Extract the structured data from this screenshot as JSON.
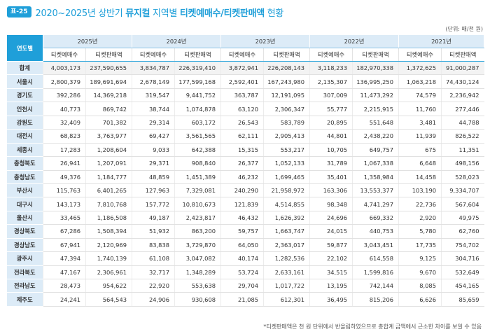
{
  "header": {
    "badge": "표-25",
    "title_prefix": "2020~2025년 상반기 ",
    "title_bold1": "뮤지컬",
    "title_mid": " 지역별 ",
    "title_bold2": "티켓예매수/티켓판매액",
    "title_suffix": " 현황"
  },
  "unit": "(단위: 매/천 원)",
  "table": {
    "corner_label": "연도별",
    "years": [
      "2025년",
      "2024년",
      "2023년",
      "2022년",
      "2021년"
    ],
    "sub_headers": [
      "티켓예매수",
      "티켓판매액"
    ],
    "rows": [
      {
        "region": "합계",
        "values": [
          "4,003,173",
          "237,590,655",
          "3,834,787",
          "226,319,410",
          "3,872,941",
          "226,208,143",
          "3,118,233",
          "182,970,338",
          "1,372,625",
          "91,000,287"
        ]
      },
      {
        "region": "서울시",
        "values": [
          "2,800,379",
          "189,691,694",
          "2,678,149",
          "177,599,168",
          "2,592,401",
          "167,243,980",
          "2,135,307",
          "136,995,250",
          "1,063,218",
          "74,430,124"
        ]
      },
      {
        "region": "경기도",
        "values": [
          "392,286",
          "14,369,218",
          "319,547",
          "9,441,752",
          "363,787",
          "12,191,095",
          "307,009",
          "11,473,292",
          "74,579",
          "2,236,942"
        ]
      },
      {
        "region": "인천시",
        "values": [
          "40,773",
          "869,742",
          "38,744",
          "1,074,878",
          "63,120",
          "2,306,347",
          "55,777",
          "2,215,915",
          "11,760",
          "277,446"
        ]
      },
      {
        "region": "강원도",
        "values": [
          "32,409",
          "701,382",
          "29,314",
          "603,172",
          "26,543",
          "583,789",
          "20,895",
          "551,648",
          "3,481",
          "44,788"
        ]
      },
      {
        "region": "대전시",
        "values": [
          "68,823",
          "3,763,977",
          "69,427",
          "3,561,565",
          "62,111",
          "2,905,413",
          "44,801",
          "2,438,220",
          "11,939",
          "826,522"
        ]
      },
      {
        "region": "세종시",
        "values": [
          "17,283",
          "1,208,604",
          "9,033",
          "642,388",
          "15,315",
          "553,217",
          "10,705",
          "649,757",
          "675",
          "11,351"
        ]
      },
      {
        "region": "충청북도",
        "values": [
          "26,941",
          "1,207,091",
          "29,371",
          "908,840",
          "26,377",
          "1,052,133",
          "31,789",
          "1,067,338",
          "6,648",
          "498,156"
        ]
      },
      {
        "region": "충청남도",
        "values": [
          "49,376",
          "1,184,777",
          "48,859",
          "1,451,389",
          "46,232",
          "1,699,465",
          "35,401",
          "1,358,984",
          "14,458",
          "528,023"
        ]
      },
      {
        "region": "부산시",
        "values": [
          "115,763",
          "6,401,265",
          "127,963",
          "7,329,081",
          "240,290",
          "21,958,972",
          "163,306",
          "13,553,377",
          "103,190",
          "9,334,707"
        ]
      },
      {
        "region": "대구시",
        "values": [
          "143,173",
          "7,810,768",
          "157,772",
          "10,810,673",
          "121,839",
          "4,514,855",
          "98,348",
          "4,741,297",
          "22,736",
          "567,604"
        ]
      },
      {
        "region": "울산시",
        "values": [
          "33,465",
          "1,186,508",
          "49,187",
          "2,423,817",
          "46,432",
          "1,626,392",
          "24,696",
          "669,332",
          "2,920",
          "49,975"
        ]
      },
      {
        "region": "경상북도",
        "values": [
          "67,286",
          "1,508,394",
          "51,932",
          "863,200",
          "59,757",
          "1,663,747",
          "24,015",
          "440,753",
          "5,780",
          "62,760"
        ]
      },
      {
        "region": "경상남도",
        "values": [
          "67,941",
          "2,120,969",
          "83,838",
          "3,729,870",
          "64,050",
          "2,363,017",
          "59,877",
          "3,043,451",
          "17,735",
          "754,702"
        ]
      },
      {
        "region": "광주시",
        "values": [
          "47,394",
          "1,740,139",
          "61,108",
          "3,047,082",
          "40,174",
          "1,282,536",
          "22,102",
          "614,558",
          "9,125",
          "304,716"
        ]
      },
      {
        "region": "전라북도",
        "values": [
          "47,167",
          "2,306,961",
          "32,717",
          "1,348,289",
          "53,724",
          "2,633,161",
          "34,515",
          "1,599,816",
          "9,670",
          "532,649"
        ]
      },
      {
        "region": "전라남도",
        "values": [
          "28,473",
          "954,622",
          "22,920",
          "553,638",
          "29,704",
          "1,017,722",
          "13,195",
          "742,144",
          "8,085",
          "454,165"
        ]
      },
      {
        "region": "제주도",
        "values": [
          "24,241",
          "564,543",
          "24,906",
          "930,608",
          "21,085",
          "612,301",
          "36,495",
          "815,206",
          "6,626",
          "85,659"
        ]
      }
    ]
  },
  "footnote": "*티켓판매액은 천 원 단위에서 반올림하였으므로 총합계 금액에서 근소한 차이를 보일 수 있음",
  "colors": {
    "accent": "#1f9fd9",
    "header_bg": "#dcebf7"
  }
}
